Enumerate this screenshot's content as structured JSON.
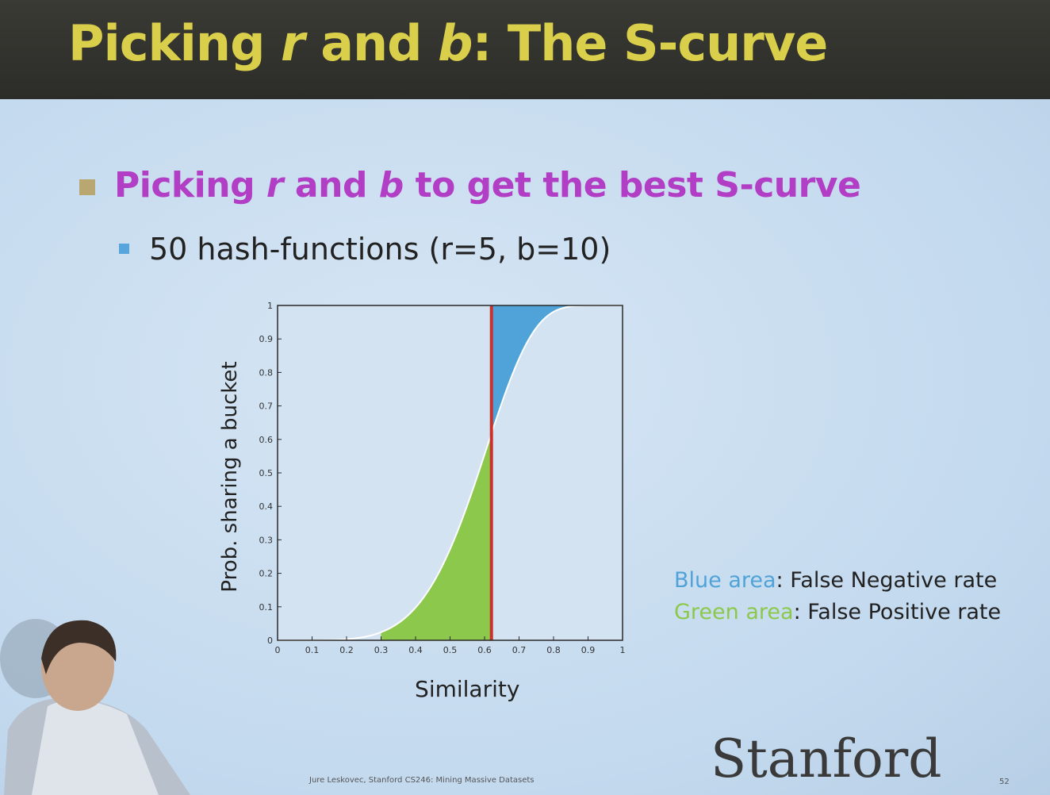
{
  "slide": {
    "title_pre": "Picking ",
    "title_r": "r",
    "title_mid": " and ",
    "title_b": "b",
    "title_post": ": The S-curve",
    "bullet1_pre": "Picking ",
    "bullet1_r": "r",
    "bullet1_mid": " and ",
    "bullet1_b": "b",
    "bullet1_post": " to get the best S-curve",
    "bullet2": "50 hash-functions (r=5, b=10)",
    "legend_blue_label": "Blue area",
    "legend_blue_text": ": False Negative rate",
    "legend_green_label": "Green area",
    "legend_green_text": ": False Positive rate",
    "logo": "Stanford",
    "footer": "Jure Leskovec, Stanford CS246: Mining Massive Datasets",
    "page_number": "52"
  },
  "chart_data": {
    "type": "area",
    "title": "",
    "xlabel": "Similarity",
    "ylabel": "Prob. sharing a bucket",
    "xlim": [
      0,
      1
    ],
    "ylim": [
      0,
      1
    ],
    "xticks": [
      0,
      0.1,
      0.2,
      0.3,
      0.4,
      0.5,
      0.6,
      0.7,
      0.8,
      0.9,
      1
    ],
    "yticks": [
      0,
      0.1,
      0.2,
      0.3,
      0.4,
      0.5,
      0.6,
      0.7,
      0.8,
      0.9,
      1
    ],
    "series": [
      {
        "formula": "1-(1-s^5)^10",
        "r": 5,
        "b": 10,
        "color": "#ffffff"
      }
    ],
    "threshold": {
      "x": 0.62,
      "color": "#c8322c"
    },
    "shaded_regions": [
      {
        "color": "#8cc84b",
        "from": 0.3,
        "to": 0.62,
        "below_curve": true
      },
      {
        "color": "#4fa3d8",
        "from": 0.62,
        "to": 1.0,
        "above_curve": true
      }
    ],
    "grid": false
  }
}
